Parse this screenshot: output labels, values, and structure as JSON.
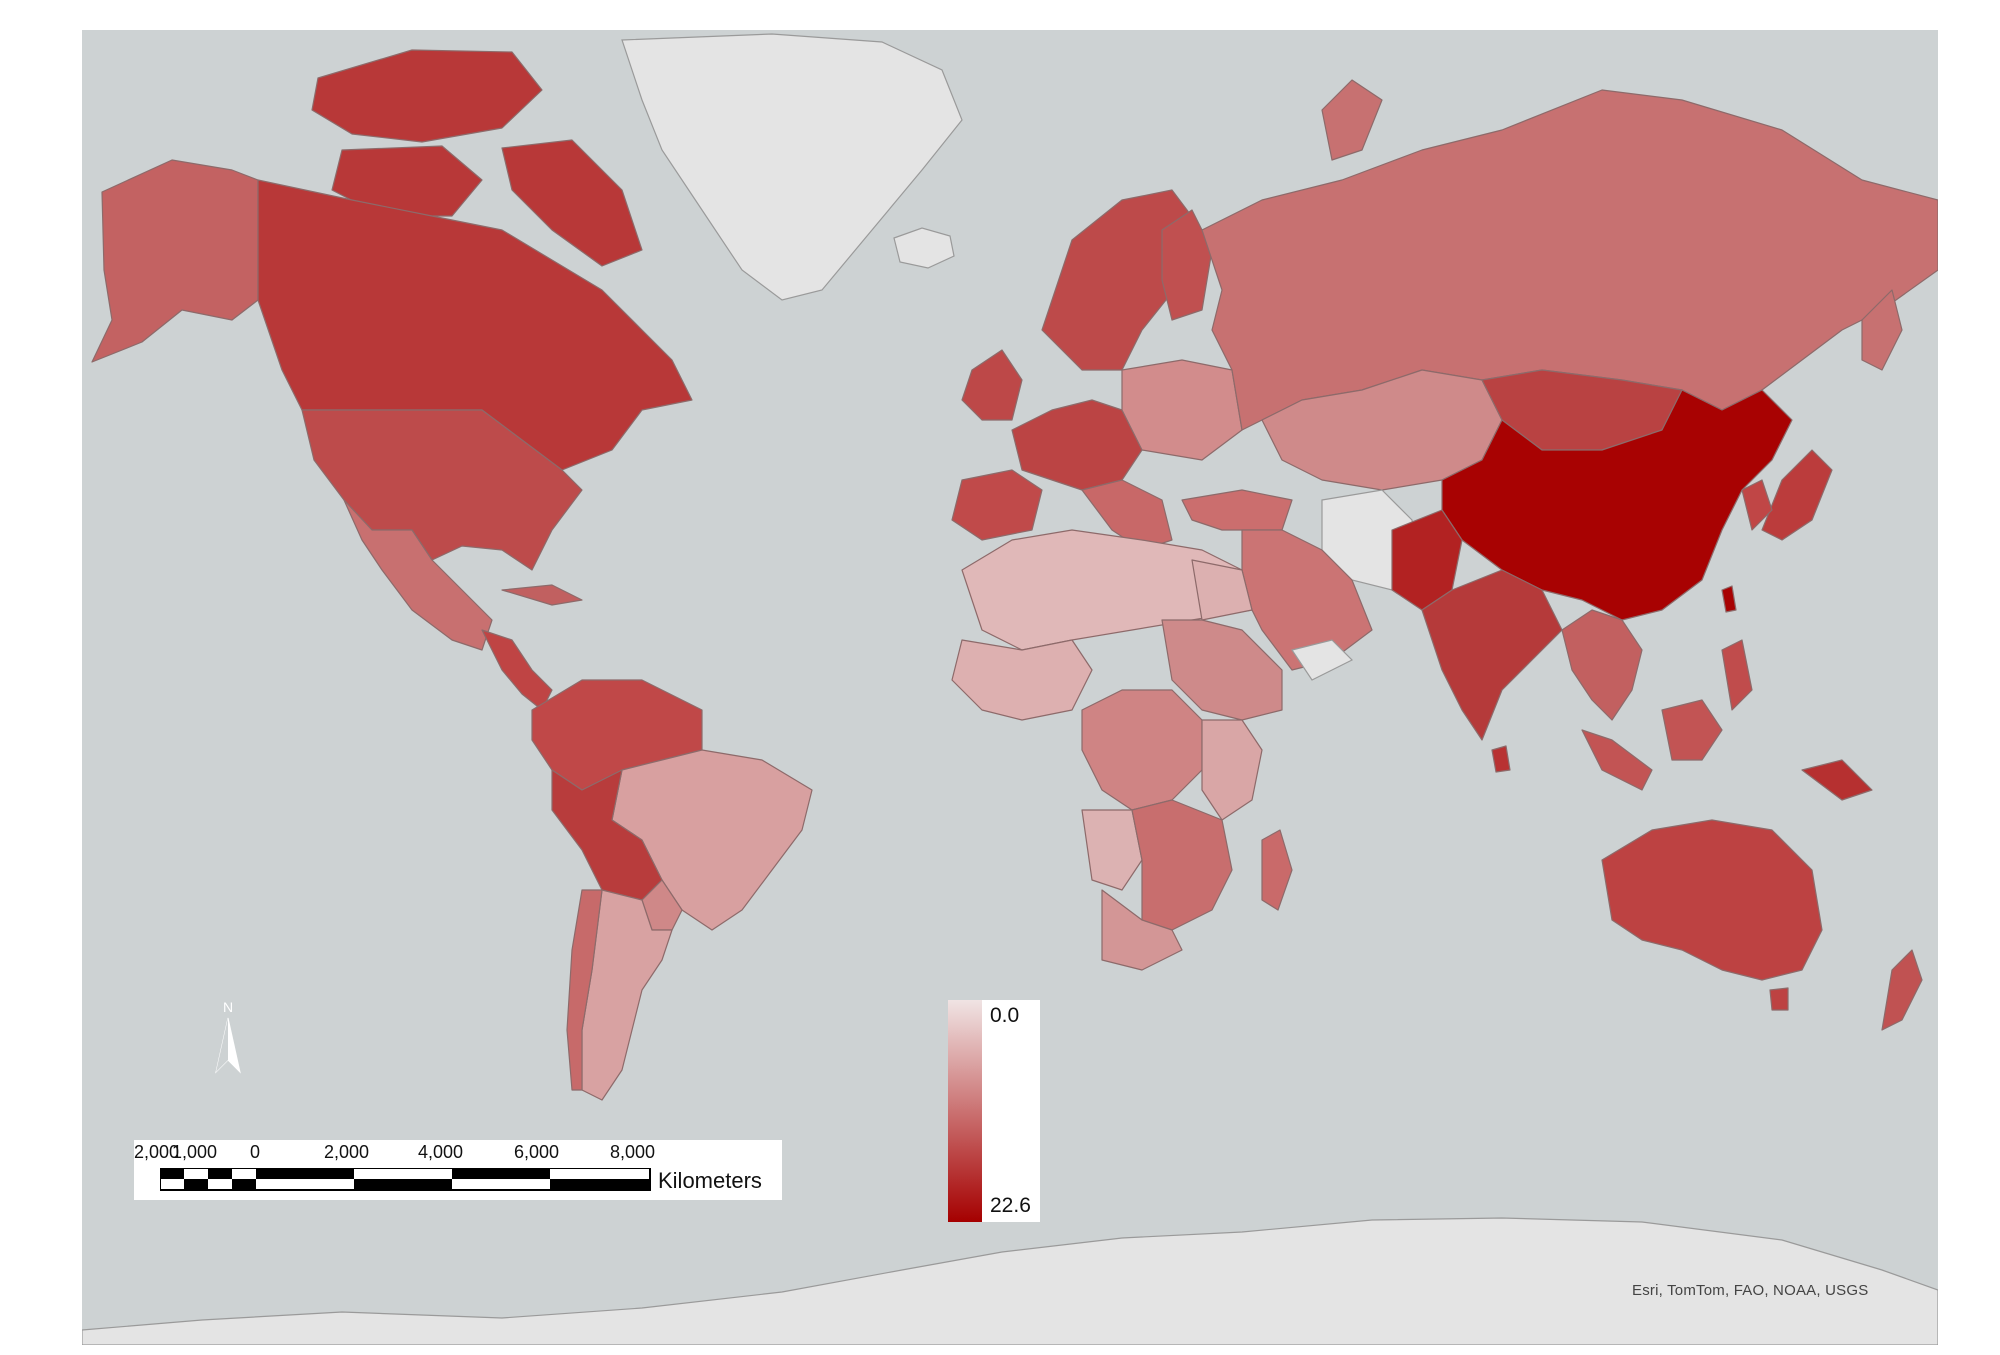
{
  "map": {
    "colors": {
      "water": "#cdd2d3",
      "no_data_land": "#e4e4e4",
      "ramp_low": "#f0e4e4",
      "ramp_high": "#a50000"
    },
    "legend": {
      "min_label": "0.0",
      "max_label": "22.6"
    },
    "scale_bar": {
      "ticks": [
        "2,000",
        "1,000",
        "0",
        "2,000",
        "4,000",
        "6,000",
        "8,000"
      ],
      "unit": "Kilometers"
    },
    "north_arrow_label": "N",
    "attribution": "Esri, TomTom, FAO, NOAA, USGS"
  }
}
